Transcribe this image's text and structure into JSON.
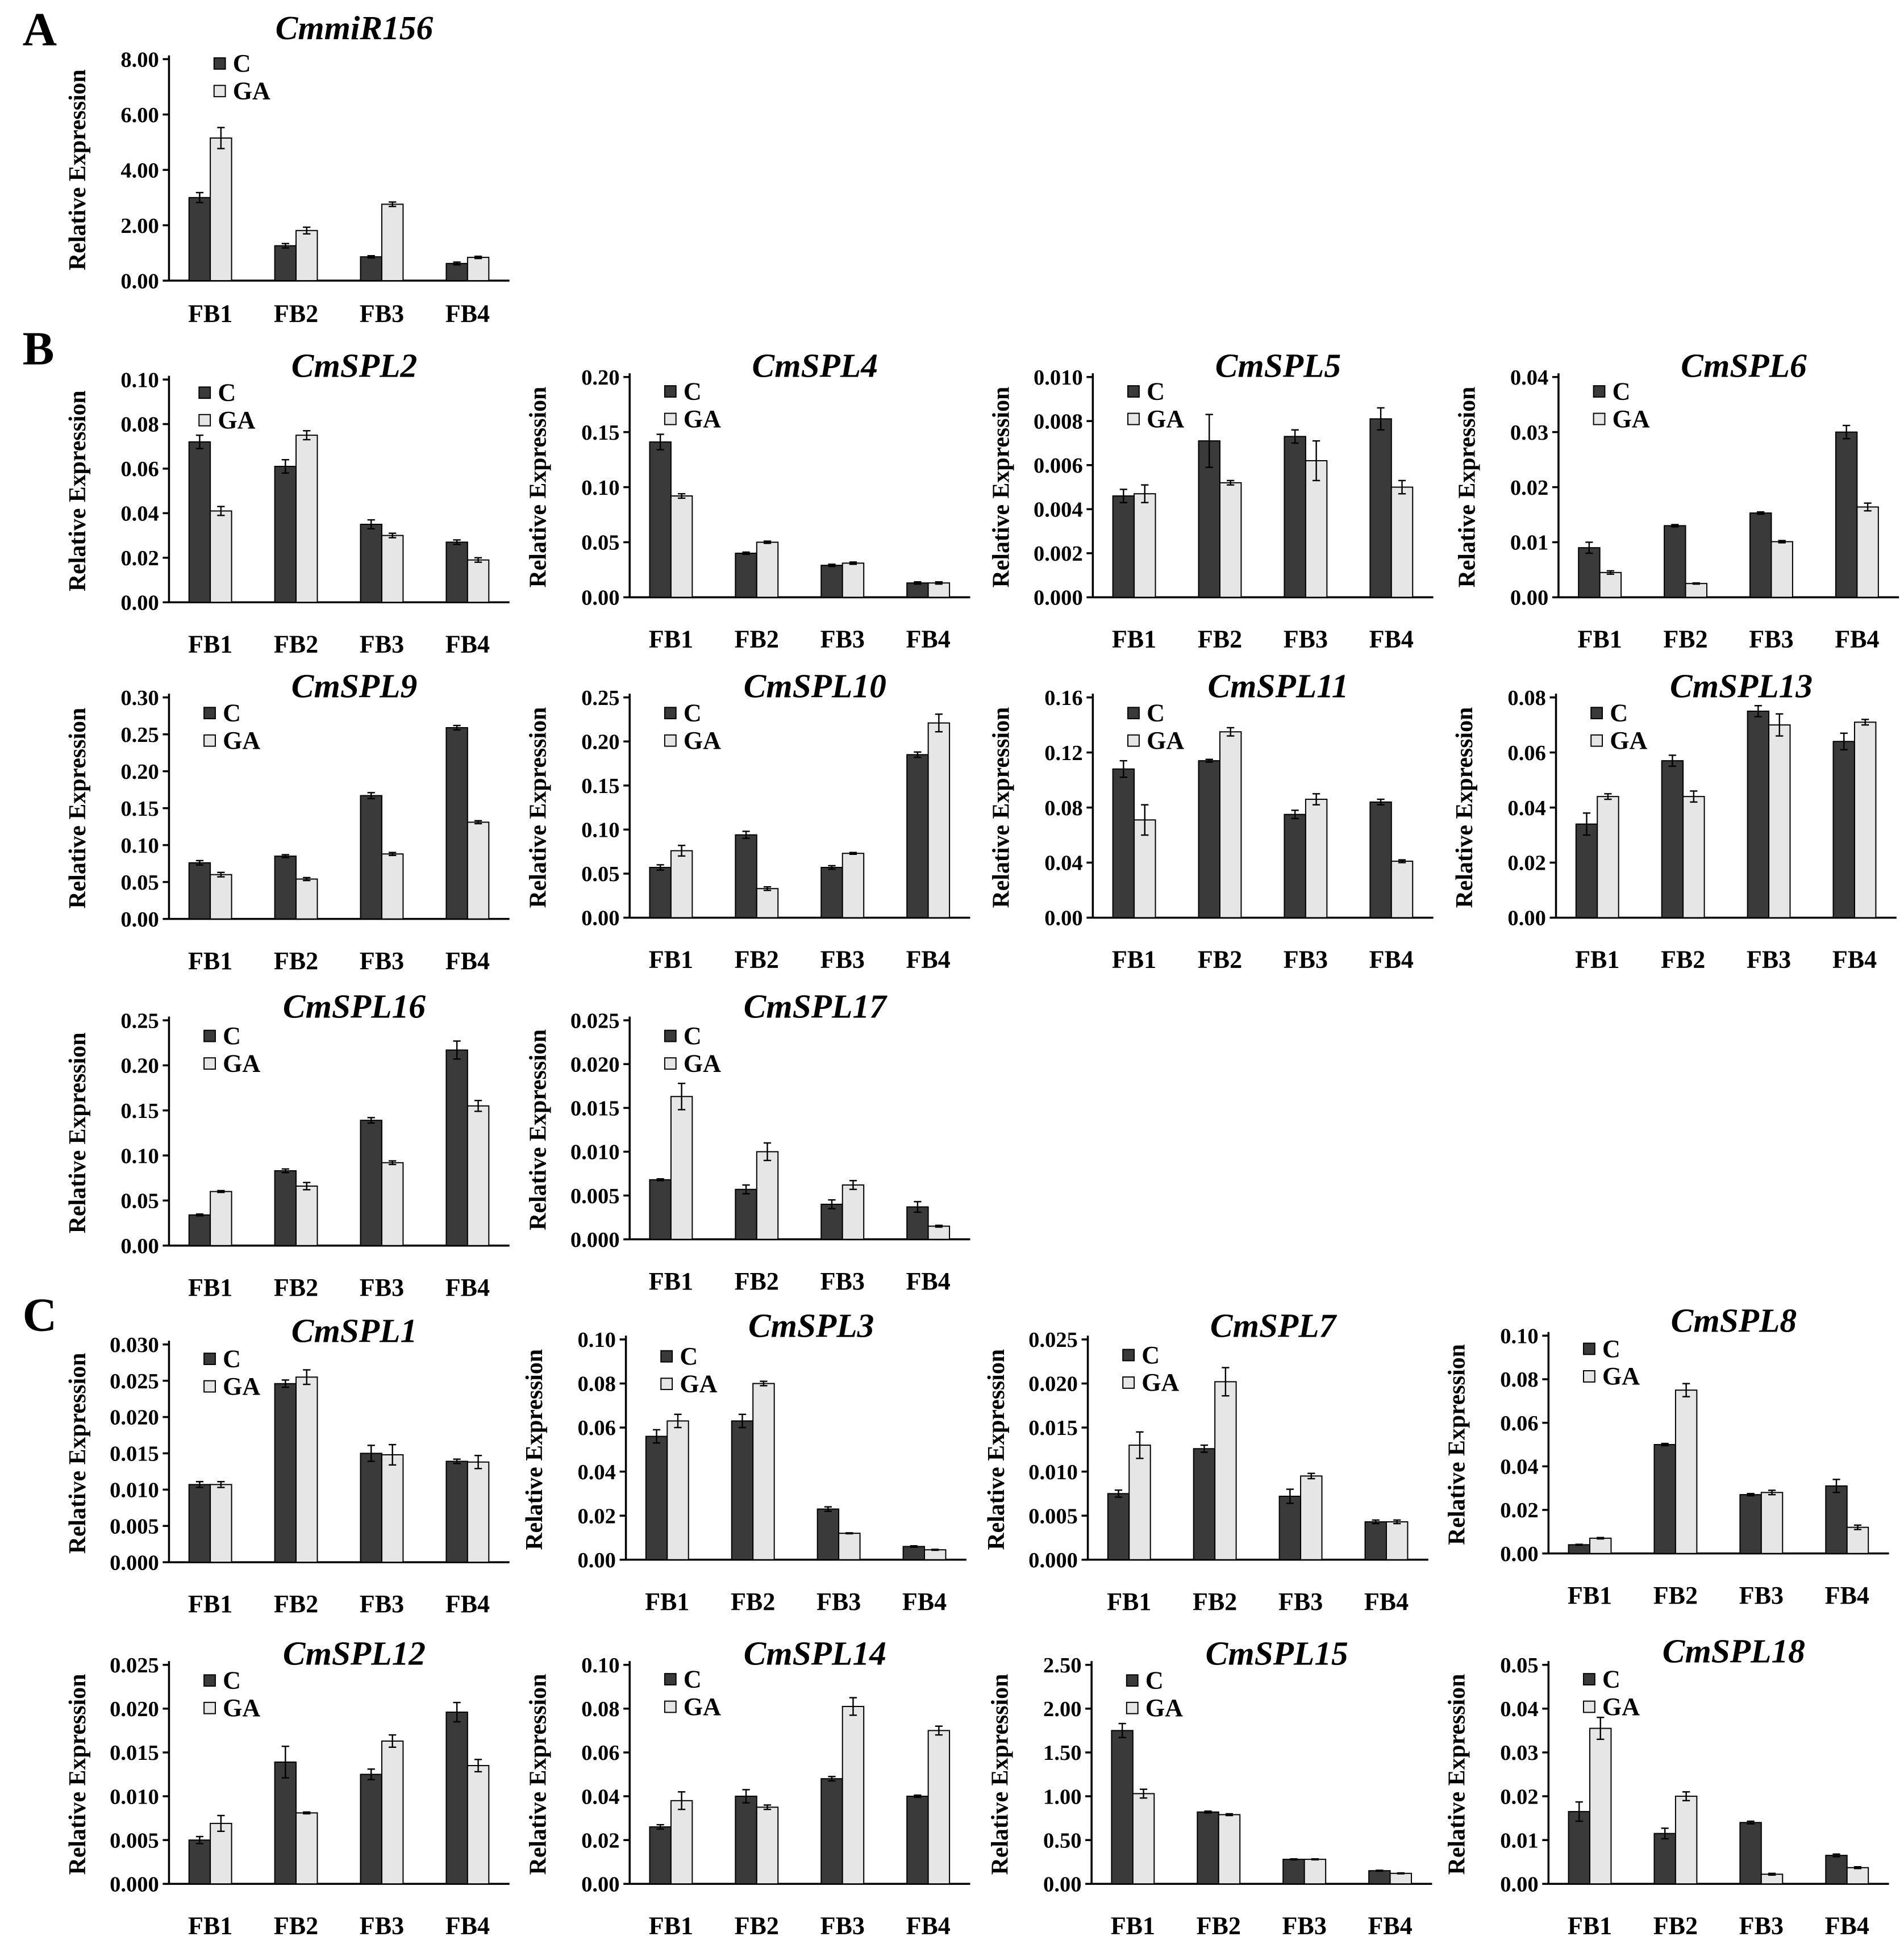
{
  "figure": {
    "panel_labels": [
      "A",
      "B",
      "C"
    ]
  },
  "chart_data": [
    {
      "type": "bar",
      "title": "CmmiR156",
      "ylabel": "Relative Expression",
      "categories": [
        "FB1",
        "FB2",
        "FB3",
        "FB4"
      ],
      "ylim": [
        0,
        8
      ],
      "yticks": [
        "0.00",
        "2.00",
        "4.00",
        "6.00",
        "8.00"
      ],
      "series": [
        {
          "name": "C",
          "color": "#3a3a3a",
          "values": [
            3.0,
            1.26,
            0.86,
            0.62
          ],
          "errors": [
            0.18,
            0.08,
            0.04,
            0.05
          ]
        },
        {
          "name": "GA",
          "color": "#e6e6e6",
          "values": [
            5.15,
            1.81,
            2.76,
            0.84
          ],
          "errors": [
            0.38,
            0.12,
            0.08,
            0.04
          ]
        }
      ]
    },
    {
      "type": "bar",
      "title": "CmSPL2",
      "ylabel": "Relative Expression",
      "categories": [
        "FB1",
        "FB2",
        "FB3",
        "FB4"
      ],
      "ylim": [
        0,
        0.1
      ],
      "yticks": [
        "0.00",
        "0.02",
        "0.04",
        "0.06",
        "0.08",
        "0.10"
      ],
      "series": [
        {
          "name": "C",
          "color": "#3a3a3a",
          "values": [
            0.072,
            0.061,
            0.035,
            0.027
          ],
          "errors": [
            0.003,
            0.003,
            0.002,
            0.001
          ]
        },
        {
          "name": "GA",
          "color": "#e6e6e6",
          "values": [
            0.041,
            0.075,
            0.03,
            0.019
          ],
          "errors": [
            0.002,
            0.002,
            0.001,
            0.001
          ]
        }
      ]
    },
    {
      "type": "bar",
      "title": "CmSPL4",
      "ylabel": "Relative Expression",
      "categories": [
        "FB1",
        "FB2",
        "FB3",
        "FB4"
      ],
      "ylim": [
        0,
        0.2
      ],
      "yticks": [
        "0.00",
        "0.05",
        "0.10",
        "0.15",
        "0.20"
      ],
      "series": [
        {
          "name": "C",
          "color": "#3a3a3a",
          "values": [
            0.141,
            0.04,
            0.029,
            0.013
          ],
          "errors": [
            0.007,
            0.001,
            0.001,
            0.001
          ]
        },
        {
          "name": "GA",
          "color": "#e6e6e6",
          "values": [
            0.092,
            0.05,
            0.031,
            0.013
          ],
          "errors": [
            0.002,
            0.001,
            0.001,
            0.001
          ]
        }
      ]
    },
    {
      "type": "bar",
      "title": "CmSPL5",
      "ylabel": "Relative Expression",
      "categories": [
        "FB1",
        "FB2",
        "FB3",
        "FB4"
      ],
      "ylim": [
        0,
        0.01
      ],
      "yticks": [
        "0.000",
        "0.002",
        "0.004",
        "0.006",
        "0.008",
        "0.010"
      ],
      "series": [
        {
          "name": "C",
          "color": "#3a3a3a",
          "values": [
            0.0046,
            0.0071,
            0.0073,
            0.0081
          ],
          "errors": [
            0.0003,
            0.0012,
            0.0003,
            0.0005
          ]
        },
        {
          "name": "GA",
          "color": "#e6e6e6",
          "values": [
            0.0047,
            0.0052,
            0.0062,
            0.005
          ],
          "errors": [
            0.0004,
            0.0001,
            0.0009,
            0.0003
          ]
        }
      ]
    },
    {
      "type": "bar",
      "title": "CmSPL6",
      "ylabel": "Relative Expression",
      "categories": [
        "FB1",
        "FB2",
        "FB3",
        "FB4"
      ],
      "ylim": [
        0,
        0.04
      ],
      "yticks": [
        "0.00",
        "0.01",
        "0.02",
        "0.03",
        "0.04"
      ],
      "series": [
        {
          "name": "C",
          "color": "#3a3a3a",
          "values": [
            0.009,
            0.013,
            0.0153,
            0.03
          ],
          "errors": [
            0.001,
            0.0002,
            0.0002,
            0.0012
          ]
        },
        {
          "name": "GA",
          "color": "#e6e6e6",
          "values": [
            0.0045,
            0.0025,
            0.0101,
            0.0164
          ],
          "errors": [
            0.0003,
            0.0001,
            0.0002,
            0.0007
          ]
        }
      ]
    },
    {
      "type": "bar",
      "title": "CmSPL9",
      "ylabel": "Relative Expression",
      "categories": [
        "FB1",
        "FB2",
        "FB3",
        "FB4"
      ],
      "ylim": [
        0,
        0.3
      ],
      "yticks": [
        "0.00",
        "0.05",
        "0.10",
        "0.15",
        "0.20",
        "0.25",
        "0.30"
      ],
      "series": [
        {
          "name": "C",
          "color": "#3a3a3a",
          "values": [
            0.076,
            0.085,
            0.167,
            0.259
          ],
          "errors": [
            0.003,
            0.002,
            0.004,
            0.003
          ]
        },
        {
          "name": "GA",
          "color": "#e6e6e6",
          "values": [
            0.06,
            0.054,
            0.088,
            0.131
          ],
          "errors": [
            0.003,
            0.002,
            0.002,
            0.002
          ]
        }
      ]
    },
    {
      "type": "bar",
      "title": "CmSPL10",
      "ylabel": "Relative Expression",
      "categories": [
        "FB1",
        "FB2",
        "FB3",
        "FB4"
      ],
      "ylim": [
        0,
        0.25
      ],
      "yticks": [
        "0.00",
        "0.05",
        "0.10",
        "0.15",
        "0.20",
        "0.25"
      ],
      "series": [
        {
          "name": "C",
          "color": "#3a3a3a",
          "values": [
            0.057,
            0.094,
            0.057,
            0.185
          ],
          "errors": [
            0.003,
            0.004,
            0.002,
            0.003
          ]
        },
        {
          "name": "GA",
          "color": "#e6e6e6",
          "values": [
            0.076,
            0.033,
            0.073,
            0.221
          ],
          "errors": [
            0.006,
            0.002,
            0.001,
            0.01
          ]
        }
      ]
    },
    {
      "type": "bar",
      "title": "CmSPL11",
      "ylabel": "Relative Expression",
      "categories": [
        "FB1",
        "FB2",
        "FB3",
        "FB4"
      ],
      "ylim": [
        0,
        0.16
      ],
      "yticks": [
        "0.00",
        "0.04",
        "0.08",
        "0.12",
        "0.16"
      ],
      "series": [
        {
          "name": "C",
          "color": "#3a3a3a",
          "values": [
            0.108,
            0.114,
            0.075,
            0.084
          ],
          "errors": [
            0.006,
            0.001,
            0.003,
            0.002
          ]
        },
        {
          "name": "GA",
          "color": "#e6e6e6",
          "values": [
            0.071,
            0.135,
            0.086,
            0.041
          ],
          "errors": [
            0.011,
            0.003,
            0.004,
            0.001
          ]
        }
      ]
    },
    {
      "type": "bar",
      "title": "CmSPL13",
      "ylabel": "Relative Expression",
      "categories": [
        "FB1",
        "FB2",
        "FB3",
        "FB4"
      ],
      "ylim": [
        0,
        0.08
      ],
      "yticks": [
        "0.00",
        "0.02",
        "0.04",
        "0.06",
        "0.08"
      ],
      "series": [
        {
          "name": "C",
          "color": "#3a3a3a",
          "values": [
            0.034,
            0.057,
            0.075,
            0.064
          ],
          "errors": [
            0.004,
            0.002,
            0.002,
            0.003
          ]
        },
        {
          "name": "GA",
          "color": "#e6e6e6",
          "values": [
            0.044,
            0.044,
            0.07,
            0.071
          ],
          "errors": [
            0.001,
            0.002,
            0.004,
            0.001
          ]
        }
      ]
    },
    {
      "type": "bar",
      "title": "CmSPL16",
      "ylabel": "Relative Expression",
      "categories": [
        "FB1",
        "FB2",
        "FB3",
        "FB4"
      ],
      "ylim": [
        0,
        0.25
      ],
      "yticks": [
        "0.00",
        "0.05",
        "0.10",
        "0.15",
        "0.20",
        "0.25"
      ],
      "series": [
        {
          "name": "C",
          "color": "#3a3a3a",
          "values": [
            0.034,
            0.083,
            0.139,
            0.217
          ],
          "errors": [
            0.001,
            0.002,
            0.003,
            0.01
          ]
        },
        {
          "name": "GA",
          "color": "#e6e6e6",
          "values": [
            0.06,
            0.066,
            0.092,
            0.155
          ],
          "errors": [
            0.001,
            0.004,
            0.002,
            0.006
          ]
        }
      ]
    },
    {
      "type": "bar",
      "title": "CmSPL17",
      "ylabel": "Relative Expression",
      "categories": [
        "FB1",
        "FB2",
        "FB3",
        "FB4"
      ],
      "ylim": [
        0,
        0.025
      ],
      "yticks": [
        "0.000",
        "0.005",
        "0.010",
        "0.015",
        "0.020",
        "0.025"
      ],
      "series": [
        {
          "name": "C",
          "color": "#3a3a3a",
          "values": [
            0.0068,
            0.0057,
            0.004,
            0.0037
          ],
          "errors": [
            0.0001,
            0.0005,
            0.0005,
            0.0006
          ]
        },
        {
          "name": "GA",
          "color": "#e6e6e6",
          "values": [
            0.0163,
            0.01,
            0.0062,
            0.0015
          ],
          "errors": [
            0.0015,
            0.001,
            0.0005,
            0.0001
          ]
        }
      ]
    },
    {
      "type": "bar",
      "title": "CmSPL1",
      "ylabel": "Relative Expression",
      "categories": [
        "FB1",
        "FB2",
        "FB3",
        "FB4"
      ],
      "ylim": [
        0,
        0.03
      ],
      "yticks": [
        "0.000",
        "0.005",
        "0.010",
        "0.015",
        "0.020",
        "0.025",
        "0.030"
      ],
      "series": [
        {
          "name": "C",
          "color": "#3a3a3a",
          "values": [
            0.0107,
            0.0246,
            0.015,
            0.0139
          ],
          "errors": [
            0.0004,
            0.0005,
            0.0011,
            0.0003
          ]
        },
        {
          "name": "GA",
          "color": "#e6e6e6",
          "values": [
            0.0107,
            0.0255,
            0.0148,
            0.0138
          ],
          "errors": [
            0.0004,
            0.001,
            0.0014,
            0.0009
          ]
        }
      ]
    },
    {
      "type": "bar",
      "title": "CmSPL3",
      "ylabel": "Relative Expression",
      "categories": [
        "FB1",
        "FB2",
        "FB3",
        "FB4"
      ],
      "ylim": [
        0,
        0.1
      ],
      "yticks": [
        "0.00",
        "0.02",
        "0.04",
        "0.06",
        "0.08",
        "0.10"
      ],
      "series": [
        {
          "name": "C",
          "color": "#3a3a3a",
          "values": [
            0.056,
            0.063,
            0.023,
            0.006
          ],
          "errors": [
            0.003,
            0.003,
            0.001,
            0.0003
          ]
        },
        {
          "name": "GA",
          "color": "#e6e6e6",
          "values": [
            0.063,
            0.08,
            0.012,
            0.0045
          ],
          "errors": [
            0.003,
            0.001,
            0.0002,
            0.0002
          ]
        }
      ]
    },
    {
      "type": "bar",
      "title": "CmSPL7",
      "ylabel": "Relative Expression",
      "categories": [
        "FB1",
        "FB2",
        "FB3",
        "FB4"
      ],
      "ylim": [
        0,
        0.025
      ],
      "yticks": [
        "0.000",
        "0.005",
        "0.010",
        "0.015",
        "0.020",
        "0.025"
      ],
      "series": [
        {
          "name": "C",
          "color": "#3a3a3a",
          "values": [
            0.0075,
            0.0126,
            0.0072,
            0.0043
          ],
          "errors": [
            0.0004,
            0.0004,
            0.0008,
            0.0002
          ]
        },
        {
          "name": "GA",
          "color": "#e6e6e6",
          "values": [
            0.013,
            0.0202,
            0.0095,
            0.0043
          ],
          "errors": [
            0.0015,
            0.0016,
            0.0003,
            0.0002
          ]
        }
      ]
    },
    {
      "type": "bar",
      "title": "CmSPL8",
      "ylabel": "Relative Expression",
      "categories": [
        "FB1",
        "FB2",
        "FB3",
        "FB4"
      ],
      "ylim": [
        0,
        0.1
      ],
      "yticks": [
        "0.00",
        "0.02",
        "0.04",
        "0.06",
        "0.08",
        "0.10"
      ],
      "series": [
        {
          "name": "C",
          "color": "#3a3a3a",
          "values": [
            0.004,
            0.05,
            0.027,
            0.031
          ],
          "errors": [
            0.0002,
            0.0005,
            0.0005,
            0.003
          ]
        },
        {
          "name": "GA",
          "color": "#e6e6e6",
          "values": [
            0.007,
            0.075,
            0.028,
            0.012
          ],
          "errors": [
            0.0003,
            0.003,
            0.001,
            0.001
          ]
        }
      ]
    },
    {
      "type": "bar",
      "title": "CmSPL12",
      "ylabel": "Relative Expression",
      "categories": [
        "FB1",
        "FB2",
        "FB3",
        "FB4"
      ],
      "ylim": [
        0,
        0.025
      ],
      "yticks": [
        "0.000",
        "0.005",
        "0.010",
        "0.015",
        "0.020",
        "0.025"
      ],
      "series": [
        {
          "name": "C",
          "color": "#3a3a3a",
          "values": [
            0.005,
            0.0139,
            0.0125,
            0.0196
          ],
          "errors": [
            0.0004,
            0.0018,
            0.0006,
            0.0011
          ]
        },
        {
          "name": "GA",
          "color": "#e6e6e6",
          "values": [
            0.0069,
            0.0081,
            0.0163,
            0.0135
          ],
          "errors": [
            0.0009,
            0.0001,
            0.0007,
            0.0007
          ]
        }
      ]
    },
    {
      "type": "bar",
      "title": "CmSPL14",
      "ylabel": "Relative Expression",
      "categories": [
        "FB1",
        "FB2",
        "FB3",
        "FB4"
      ],
      "ylim": [
        0,
        0.1
      ],
      "yticks": [
        "0.00",
        "0.02",
        "0.04",
        "0.06",
        "0.08",
        "0.10"
      ],
      "series": [
        {
          "name": "C",
          "color": "#3a3a3a",
          "values": [
            0.026,
            0.04,
            0.048,
            0.04
          ],
          "errors": [
            0.001,
            0.003,
            0.001,
            0.0005
          ]
        },
        {
          "name": "GA",
          "color": "#e6e6e6",
          "values": [
            0.038,
            0.035,
            0.081,
            0.07
          ],
          "errors": [
            0.004,
            0.001,
            0.004,
            0.002
          ]
        }
      ]
    },
    {
      "type": "bar",
      "title": "CmSPL15",
      "ylabel": "Relative Expression",
      "categories": [
        "FB1",
        "FB2",
        "FB3",
        "FB4"
      ],
      "ylim": [
        0,
        2.5
      ],
      "yticks": [
        "0.00",
        "0.50",
        "1.00",
        "1.50",
        "2.00",
        "2.50"
      ],
      "series": [
        {
          "name": "C",
          "color": "#3a3a3a",
          "values": [
            1.75,
            0.82,
            0.28,
            0.15
          ],
          "errors": [
            0.08,
            0.01,
            0.005,
            0.005
          ]
        },
        {
          "name": "GA",
          "color": "#e6e6e6",
          "values": [
            1.03,
            0.79,
            0.28,
            0.12
          ],
          "errors": [
            0.05,
            0.01,
            0.005,
            0.005
          ]
        }
      ]
    },
    {
      "type": "bar",
      "title": "CmSPL18",
      "ylabel": "Relative Expression",
      "categories": [
        "FB1",
        "FB2",
        "FB3",
        "FB4"
      ],
      "ylim": [
        0,
        0.05
      ],
      "yticks": [
        "0.00",
        "0.01",
        "0.02",
        "0.03",
        "0.04",
        "0.05"
      ],
      "series": [
        {
          "name": "C",
          "color": "#3a3a3a",
          "values": [
            0.0165,
            0.0115,
            0.014,
            0.0065
          ],
          "errors": [
            0.0022,
            0.0012,
            0.0003,
            0.0003
          ]
        },
        {
          "name": "GA",
          "color": "#e6e6e6",
          "values": [
            0.0355,
            0.02,
            0.0022,
            0.0037
          ],
          "errors": [
            0.0025,
            0.001,
            0.0002,
            0.0002
          ]
        }
      ]
    }
  ]
}
